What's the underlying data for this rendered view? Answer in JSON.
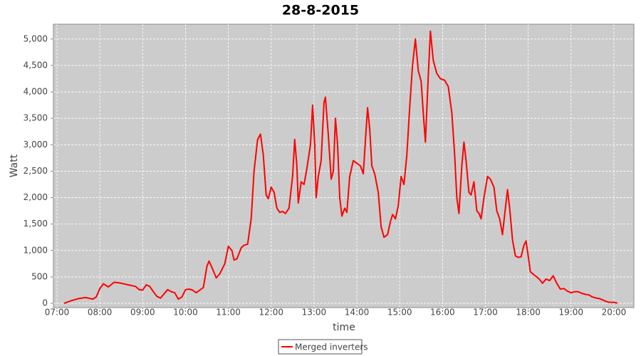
{
  "chart_data": {
    "type": "line",
    "title": "28-8-2015",
    "xlabel": "time",
    "ylabel": "Watt",
    "x": [
      "07:10",
      "07:20",
      "07:30",
      "07:40",
      "07:50",
      "07:55",
      "08:00",
      "08:05",
      "08:12",
      "08:20",
      "08:30",
      "08:40",
      "08:50",
      "08:55",
      "09:00",
      "09:05",
      "09:10",
      "09:15",
      "09:20",
      "09:25",
      "09:30",
      "09:35",
      "09:40",
      "09:45",
      "09:50",
      "09:55",
      "10:00",
      "10:05",
      "10:10",
      "10:15",
      "10:20",
      "10:25",
      "10:30",
      "10:33",
      "10:38",
      "10:43",
      "10:48",
      "10:55",
      "11:00",
      "11:05",
      "11:08",
      "11:12",
      "11:18",
      "11:22",
      "11:27",
      "11:32",
      "11:36",
      "11:41",
      "11:45",
      "11:49",
      "11:53",
      "11:56",
      "12:00",
      "12:04",
      "12:08",
      "12:12",
      "12:16",
      "12:20",
      "12:25",
      "12:30",
      "12:33",
      "12:36",
      "12:38",
      "12:42",
      "12:46",
      "12:50",
      "12:55",
      "12:58",
      "13:01",
      "13:03",
      "13:06",
      "13:10",
      "13:14",
      "13:16",
      "13:20",
      "13:24",
      "13:27",
      "13:30",
      "13:33",
      "13:36",
      "13:39",
      "13:43",
      "13:46",
      "13:50",
      "13:55",
      "14:00",
      "14:05",
      "14:09",
      "14:13",
      "14:15",
      "14:18",
      "14:21",
      "14:25",
      "14:30",
      "14:34",
      "14:38",
      "14:43",
      "14:47",
      "14:50",
      "14:54",
      "14:58",
      "15:02",
      "15:06",
      "15:10",
      "15:14",
      "15:18",
      "15:22",
      "15:26",
      "15:30",
      "15:33",
      "15:36",
      "15:40",
      "15:43",
      "15:47",
      "15:52",
      "15:57",
      "16:03",
      "16:08",
      "16:13",
      "16:17",
      "16:20",
      "16:23",
      "16:27",
      "16:30",
      "16:33",
      "16:37",
      "16:40",
      "16:44",
      "16:48",
      "16:51",
      "16:54",
      "16:58",
      "17:03",
      "17:07",
      "17:12",
      "17:16",
      "17:20",
      "17:24",
      "17:28",
      "17:31",
      "17:34",
      "17:38",
      "17:42",
      "17:46",
      "17:50",
      "17:54",
      "17:57",
      "18:00",
      "18:03",
      "18:08",
      "18:12",
      "18:16",
      "18:20",
      "18:25",
      "18:30",
      "18:35",
      "18:40",
      "18:45",
      "18:50",
      "18:55",
      "19:00",
      "19:05",
      "19:10",
      "19:15",
      "19:20",
      "19:25",
      "19:30",
      "19:35",
      "19:40",
      "19:45",
      "19:50",
      "19:55",
      "20:00",
      "20:05"
    ],
    "series": [
      {
        "name": "Merged inverters",
        "color": "#ff0000",
        "values": [
          0,
          50,
          90,
          110,
          80,
          120,
          280,
          370,
          310,
          400,
          380,
          350,
          320,
          260,
          250,
          350,
          320,
          220,
          130,
          100,
          180,
          260,
          220,
          200,
          80,
          120,
          260,
          270,
          250,
          200,
          250,
          300,
          700,
          800,
          650,
          480,
          560,
          750,
          1080,
          1000,
          820,
          840,
          1050,
          1100,
          1120,
          1600,
          2500,
          3100,
          3200,
          2800,
          2050,
          1980,
          2200,
          2100,
          1800,
          1720,
          1740,
          1700,
          1800,
          2400,
          3100,
          2600,
          1900,
          2300,
          2250,
          2550,
          3000,
          3750,
          3000,
          2000,
          2400,
          2700,
          3800,
          3900,
          3200,
          2350,
          2500,
          3500,
          3000,
          2000,
          1650,
          1800,
          1720,
          2400,
          2700,
          2650,
          2600,
          2450,
          3300,
          3700,
          3300,
          2600,
          2450,
          2100,
          1450,
          1250,
          1300,
          1550,
          1680,
          1600,
          1850,
          2400,
          2250,
          2800,
          3700,
          4500,
          5000,
          4400,
          4200,
          3600,
          3050,
          4300,
          5150,
          4600,
          4350,
          4250,
          4220,
          4100,
          3600,
          2800,
          2000,
          1700,
          2600,
          3050,
          2700,
          2100,
          2050,
          2300,
          1750,
          1700,
          1600,
          2000,
          2400,
          2350,
          2200,
          1750,
          1600,
          1300,
          1800,
          2150,
          1800,
          1200,
          900,
          870,
          880,
          1100,
          1180,
          900,
          600,
          540,
          500,
          450,
          380,
          460,
          430,
          520,
          380,
          270,
          280,
          230,
          200,
          220,
          220,
          190,
          170,
          160,
          120,
          100,
          90,
          60,
          30,
          20,
          20,
          5
        ]
      }
    ],
    "xlim": [
      "06:55",
      "20:28"
    ],
    "xticks": [
      "07:00",
      "08:00",
      "09:00",
      "10:00",
      "11:00",
      "12:00",
      "13:00",
      "14:00",
      "15:00",
      "16:00",
      "17:00",
      "18:00",
      "19:00",
      "20:00"
    ],
    "ylim": [
      -80,
      5280
    ],
    "yticks": [
      0,
      500,
      {
        "value": 1000,
        "label": "1,000"
      },
      {
        "value": 1500,
        "label": "1,500"
      },
      {
        "value": 2000,
        "label": "2,000"
      },
      {
        "value": 2500,
        "label": "2,500"
      },
      {
        "value": 3000,
        "label": "3,000"
      },
      {
        "value": 3500,
        "label": "3,500"
      },
      {
        "value": 4000,
        "label": "4,000"
      },
      {
        "value": 4500,
        "label": "4,500"
      },
      {
        "value": 5000,
        "label": "5,000"
      }
    ],
    "grid": true,
    "plot_background": "#cccccc",
    "legend": "bottom"
  }
}
